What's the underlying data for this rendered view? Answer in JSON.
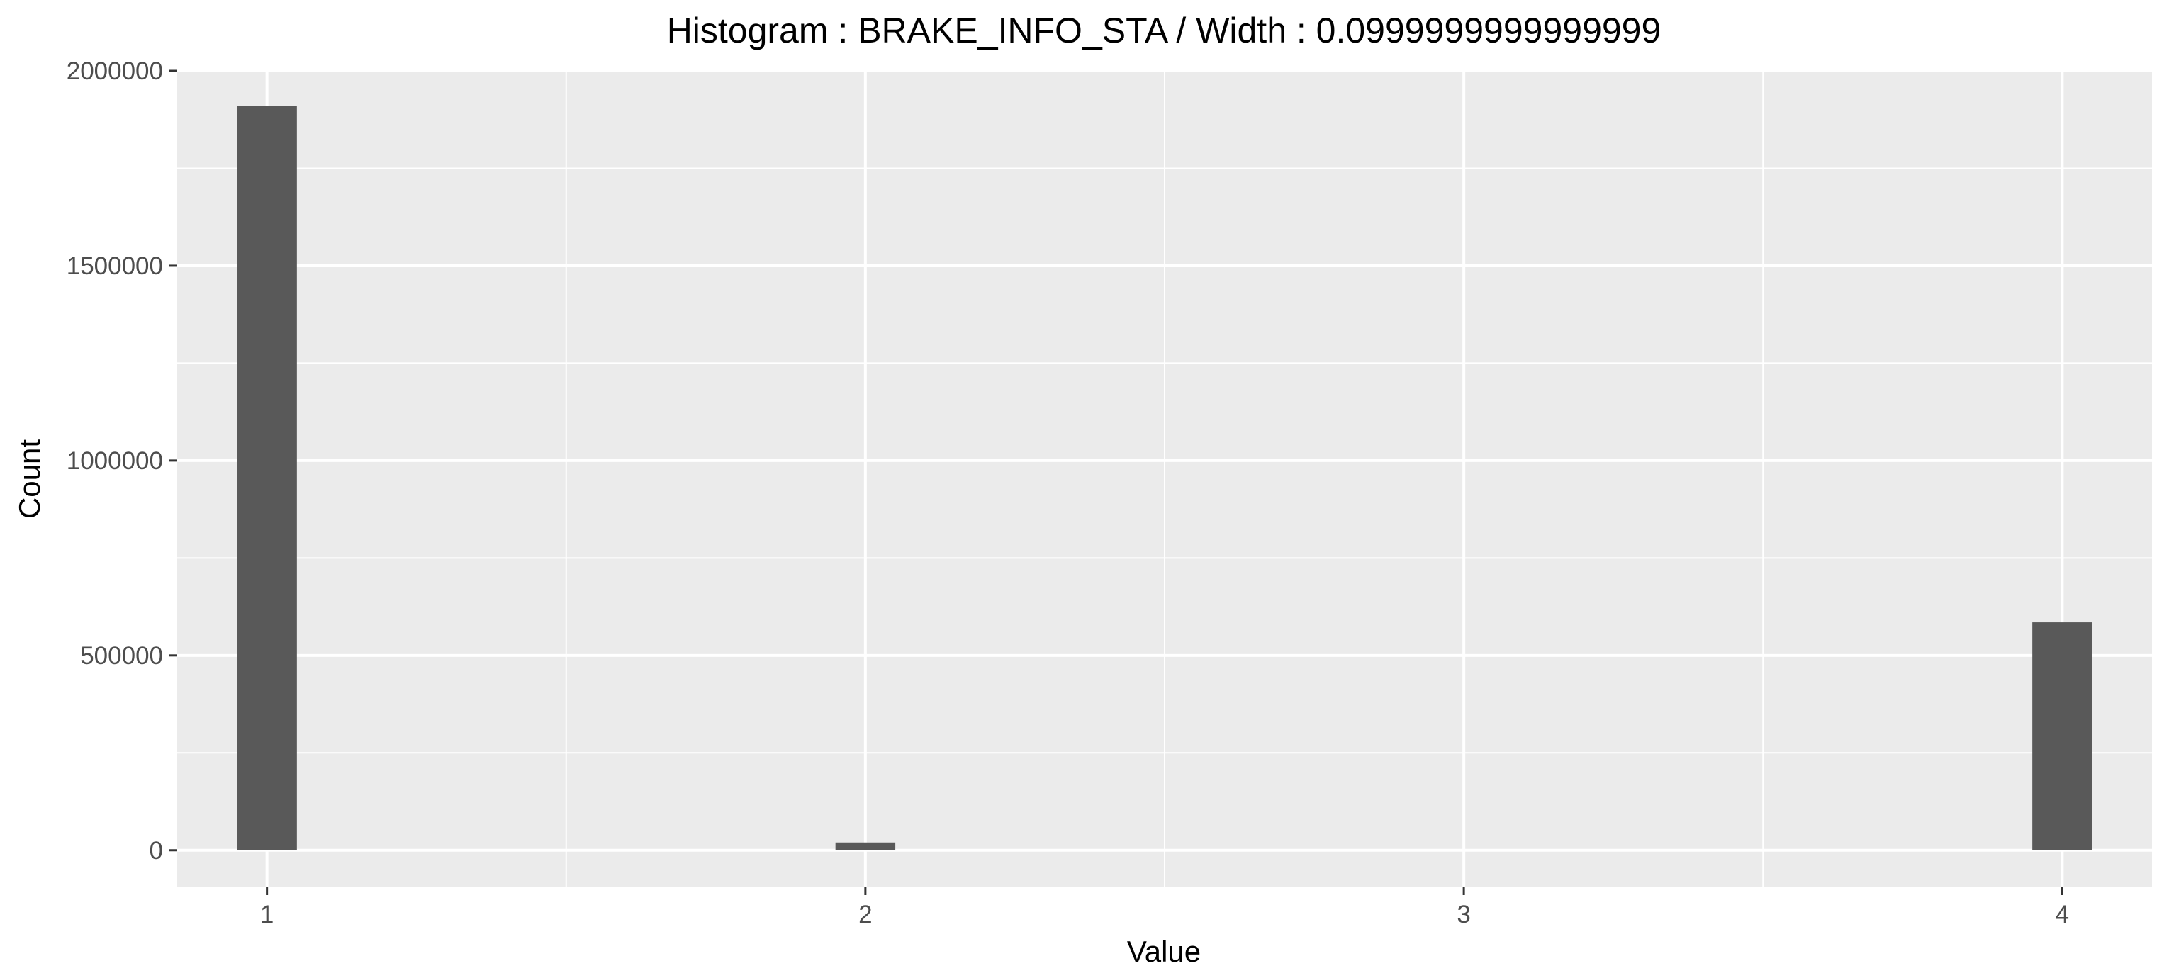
{
  "chart_data": {
    "type": "bar",
    "title": "Histogram : BRAKE_INFO_STA / Width : 0.0999999999999999",
    "xlabel": "Value",
    "ylabel": "Count",
    "bin_width": 0.1,
    "bins": [
      {
        "x": 1,
        "count": 1910000
      },
      {
        "x": 2,
        "count": 20000
      },
      {
        "x": 4,
        "count": 585000
      }
    ],
    "xlim": [
      0.85,
      4.15
    ],
    "ylim": [
      -95000,
      2000000
    ],
    "x_ticks": [
      1,
      2,
      3,
      4
    ],
    "x_tick_labels": [
      "1",
      "2",
      "3",
      "4"
    ],
    "y_ticks": [
      0,
      500000,
      1000000,
      1500000,
      2000000
    ],
    "y_tick_labels": [
      "0",
      "500000",
      "1000000",
      "1500000",
      "2000000"
    ],
    "grid": true,
    "legend": "none",
    "colors": {
      "panel_bg": "#ebebeb",
      "grid": "#ffffff",
      "bar": "#595959",
      "tick": "#333333"
    }
  }
}
